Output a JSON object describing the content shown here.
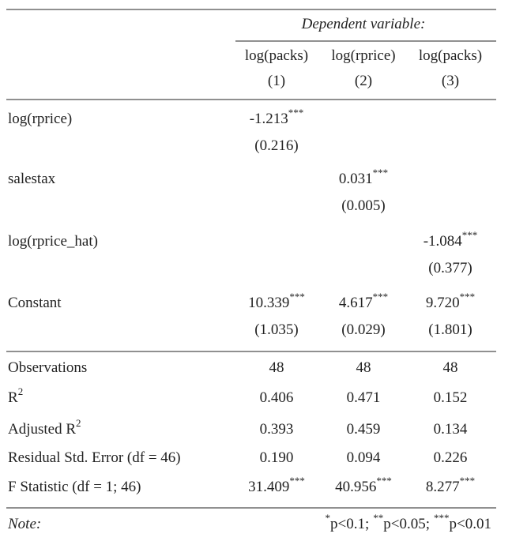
{
  "header": {
    "dep_var": "Dependent variable:",
    "columns": [
      {
        "dv": "log(packs)",
        "num": "(1)"
      },
      {
        "dv": "log(rprice)",
        "num": "(2)"
      },
      {
        "dv": "log(packs)",
        "num": "(3)"
      }
    ]
  },
  "rows": [
    {
      "label": "log(rprice)",
      "cells": [
        {
          "coef": "-1.213",
          "stars": "***",
          "se": "(0.216)"
        },
        null,
        null
      ]
    },
    {
      "label": "salestax",
      "cells": [
        null,
        {
          "coef": "0.031",
          "stars": "***",
          "se": "(0.005)"
        },
        null
      ]
    },
    {
      "label": "log(rprice_hat)",
      "cells": [
        null,
        null,
        {
          "coef": "-1.084",
          "stars": "***",
          "se": "(0.377)"
        }
      ]
    },
    {
      "label": "Constant",
      "cells": [
        {
          "coef": "10.339",
          "stars": "***",
          "se": "(1.035)"
        },
        {
          "coef": "4.617",
          "stars": "***",
          "se": "(0.029)"
        },
        {
          "coef": "9.720",
          "stars": "***",
          "se": "(1.801)"
        }
      ]
    }
  ],
  "stats": [
    {
      "label": "Observations",
      "values": [
        {
          "value": "48"
        },
        {
          "value": "48"
        },
        {
          "value": "48"
        }
      ]
    },
    {
      "label": "R",
      "label_sup": "2",
      "values": [
        {
          "value": "0.406"
        },
        {
          "value": "0.471"
        },
        {
          "value": "0.152"
        }
      ]
    },
    {
      "label": "Adjusted R",
      "label_sup": "2",
      "values": [
        {
          "value": "0.393"
        },
        {
          "value": "0.459"
        },
        {
          "value": "0.134"
        }
      ]
    },
    {
      "label": "Residual Std. Error (df = 46)",
      "values": [
        {
          "value": "0.190"
        },
        {
          "value": "0.094"
        },
        {
          "value": "0.226"
        }
      ]
    },
    {
      "label": "F Statistic (df = 1; 46)",
      "values": [
        {
          "value": "31.409",
          "stars": "***"
        },
        {
          "value": "40.956",
          "stars": "***"
        },
        {
          "value": "8.277",
          "stars": "***"
        }
      ]
    }
  ],
  "note": {
    "label": "Note:",
    "items": [
      {
        "stars": "*",
        "text": "p<0.1;"
      },
      {
        "stars": "**",
        "text": "p<0.05;"
      },
      {
        "stars": "***",
        "text": "p<0.01"
      }
    ]
  }
}
